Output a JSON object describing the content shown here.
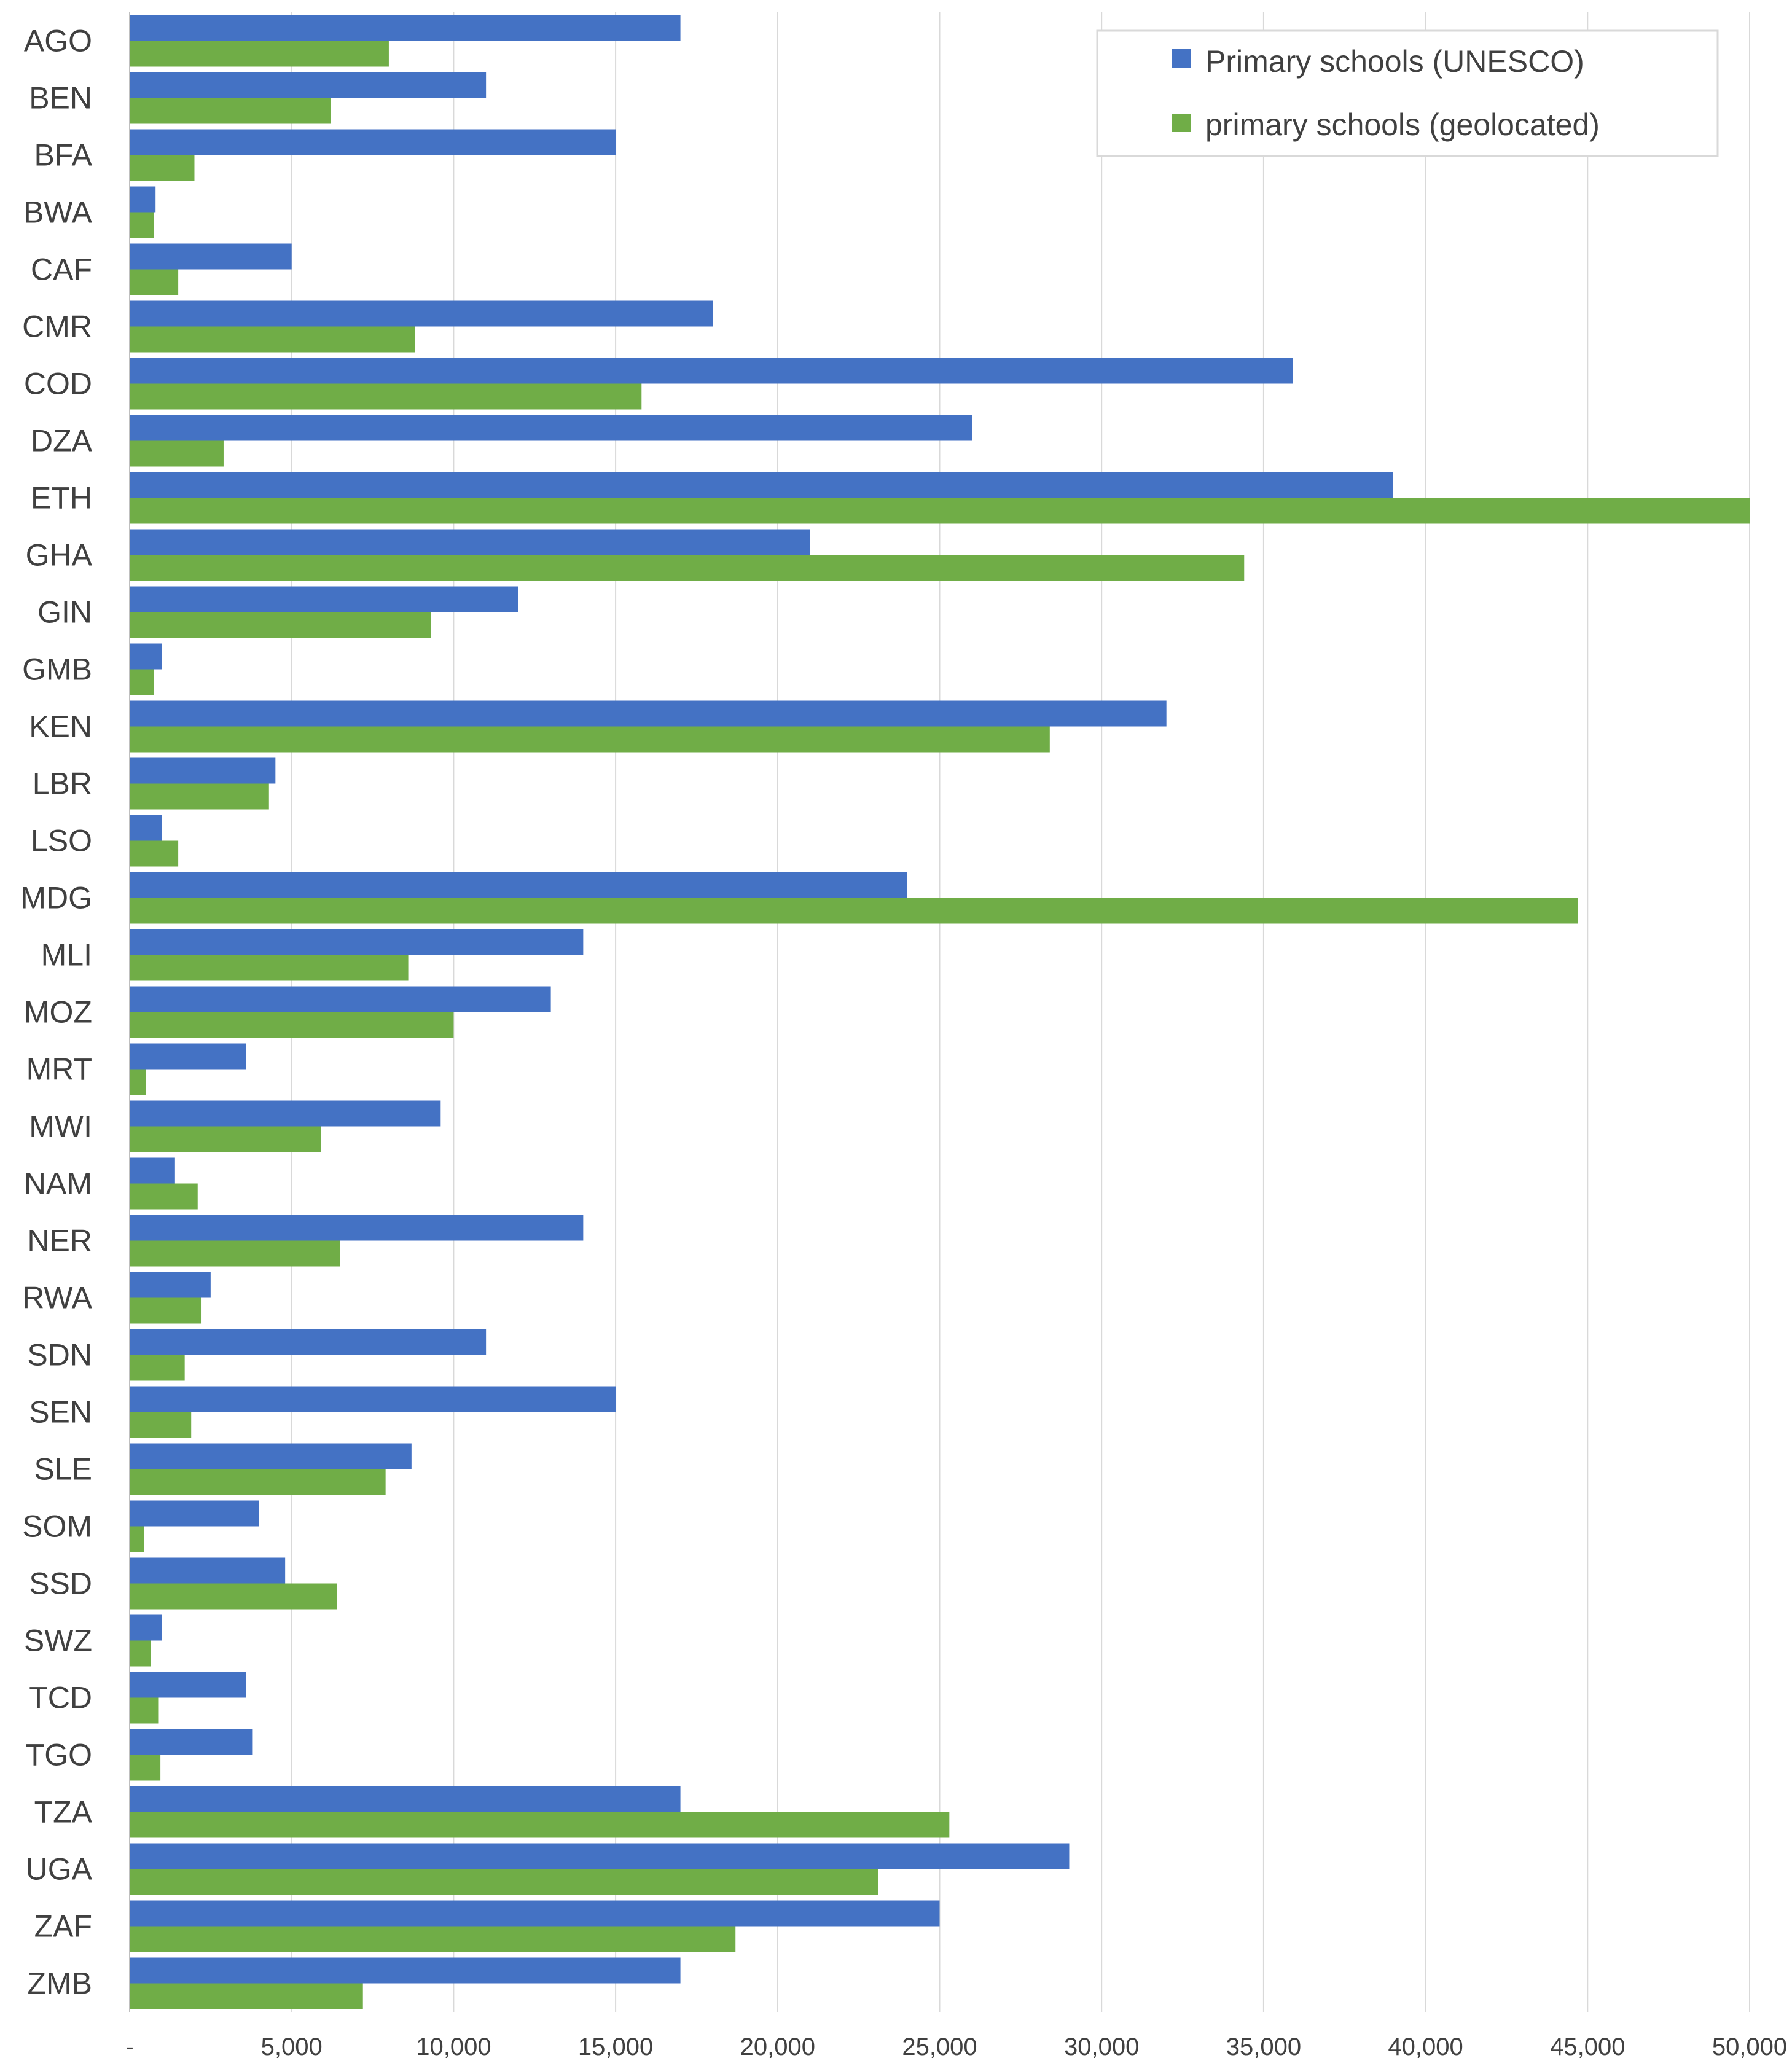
{
  "chart_data": {
    "type": "bar",
    "orientation": "horizontal",
    "categories": [
      "AGO",
      "BEN",
      "BFA",
      "BWA",
      "CAF",
      "CMR",
      "COD",
      "DZA",
      "ETH",
      "GHA",
      "GIN",
      "GMB",
      "KEN",
      "LBR",
      "LSO",
      "MDG",
      "MLI",
      "MOZ",
      "MRT",
      "MWI",
      "NAM",
      "NER",
      "RWA",
      "SDN",
      "SEN",
      "SLE",
      "SOM",
      "SSD",
      "SWZ",
      "TCD",
      "TGO",
      "TZA",
      "UGA",
      "ZAF",
      "ZMB"
    ],
    "series": [
      {
        "name": "Primary schools (UNESCO)",
        "color": "#4472C4",
        "values": [
          17000,
          11000,
          15000,
          800,
          5000,
          18000,
          35900,
          26000,
          39000,
          21000,
          12000,
          1000,
          32000,
          4500,
          1000,
          24000,
          14000,
          13000,
          3600,
          9600,
          1400,
          14000,
          2500,
          11000,
          15000,
          8700,
          4000,
          4800,
          1000,
          3600,
          3800,
          17000,
          29000,
          25000,
          17000
        ]
      },
      {
        "name": "primary schools (geolocated)",
        "color": "#70AD47",
        "values": [
          8000,
          6200,
          2000,
          750,
          1500,
          8800,
          15800,
          2900,
          50000,
          34400,
          9300,
          750,
          28400,
          4300,
          1500,
          44700,
          8600,
          10000,
          500,
          5900,
          2100,
          6500,
          2200,
          1700,
          1900,
          7900,
          450,
          6400,
          650,
          900,
          950,
          25300,
          23100,
          18700,
          7200
        ]
      }
    ],
    "x_ticks": [
      "-",
      "5,000",
      "10,000",
      "15,000",
      "20,000",
      "25,000",
      "30,000",
      "35,000",
      "40,000",
      "45,000",
      "50,000"
    ],
    "xlim": [
      0,
      50000
    ],
    "grid": true,
    "legend_position": "top-right"
  }
}
